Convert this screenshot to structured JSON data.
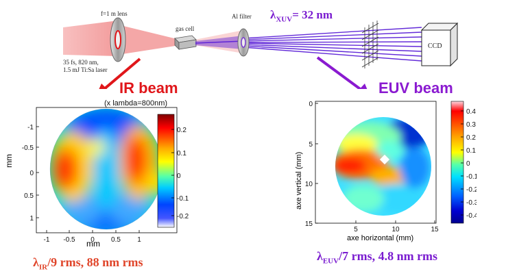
{
  "setup": {
    "lens_label": "f=1 m lens",
    "gas_cell_label": "gas cell",
    "filter_label": "Al filter",
    "ccd_label": "CCD",
    "laser_line1": "35 fs, 820 nm,",
    "laser_line2": "1.5 mJ Ti:Sa laser",
    "xuv_lambda_symbol": "λ",
    "xuv_lambda_sub": "XUV",
    "xuv_lambda_value": "=  32 nm"
  },
  "ir": {
    "title": "IR beam",
    "unit_note": "(x lambda=800nm)",
    "y_axis_label": "mm",
    "x_axis_label": "mm",
    "y_ticks": [
      "-1",
      "-0.5",
      "0",
      "0.5",
      "1"
    ],
    "x_ticks": [
      "-1",
      "-0.5",
      "0",
      "0.5",
      "1"
    ],
    "colorbar_ticks": [
      "0.2",
      "0.1",
      "0",
      "-0.1",
      "-0.2"
    ],
    "caption_symbol": "λ",
    "caption_sub": "IR",
    "caption_rest": "/9 rms,  88 nm rms"
  },
  "euv": {
    "title": "EUV beam",
    "y_axis_label": "axe vertical (mm)",
    "x_axis_label": "axe horizontal (mm)",
    "y_ticks": [
      "0",
      "5",
      "10",
      "15"
    ],
    "x_ticks": [
      "5",
      "10",
      "15"
    ],
    "colorbar_ticks": [
      "0.4",
      "0.3",
      "0.2",
      "0.1",
      "0",
      "-0.1",
      "-0.2",
      "-0.3",
      "-0.4"
    ],
    "caption_symbol": "λ",
    "caption_sub": "EUV",
    "caption_rest": "/7 rms, 4.8 nm rms"
  },
  "colors": {
    "ir_beam": "#f2a0a0",
    "xuv_beam": "#5a1fd6",
    "red_arrow": "#e0161a",
    "purple_arrow": "#8a1ad0"
  }
}
